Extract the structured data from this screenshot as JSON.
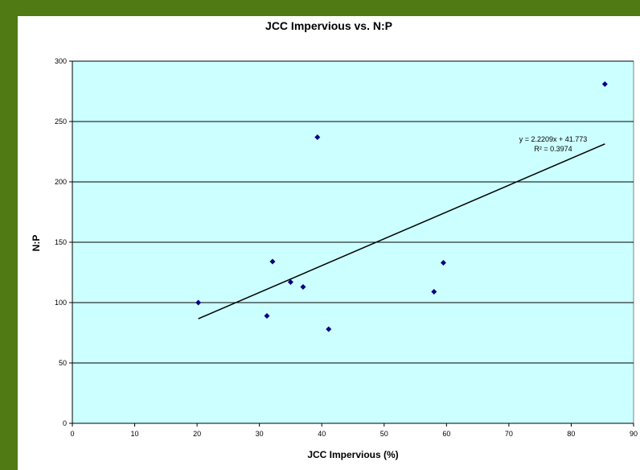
{
  "chart_data": {
    "type": "scatter",
    "title": "JCC Impervious vs. N:P",
    "xlabel": "JCC Impervious (%)",
    "ylabel": "N:P",
    "xlim": [
      0,
      90
    ],
    "ylim": [
      0,
      300
    ],
    "xticks": [
      0,
      10,
      20,
      30,
      40,
      50,
      60,
      70,
      80,
      90
    ],
    "yticks": [
      0,
      50,
      100,
      150,
      200,
      250,
      300
    ],
    "grid": "horizontal",
    "series": [
      {
        "points": [
          {
            "x": 20.2,
            "y": 100
          },
          {
            "x": 31.2,
            "y": 89
          },
          {
            "x": 32.1,
            "y": 134
          },
          {
            "x": 35,
            "y": 117
          },
          {
            "x": 37,
            "y": 113
          },
          {
            "x": 39.3,
            "y": 237
          },
          {
            "x": 41.1,
            "y": 78
          },
          {
            "x": 58,
            "y": 109
          },
          {
            "x": 59.5,
            "y": 133
          },
          {
            "x": 85.4,
            "y": 281
          }
        ]
      }
    ],
    "trendline": {
      "slope": 2.2209,
      "intercept": 41.773,
      "x_range": [
        20.2,
        85.4
      ],
      "equation": "y = 2.2209x + 41.773",
      "r_squared": "R² = 0.3974"
    },
    "colors": {
      "plot_background": "#ccffff",
      "marker": "#000080",
      "trendline": "#000000",
      "frame": "#4f7a14"
    }
  }
}
